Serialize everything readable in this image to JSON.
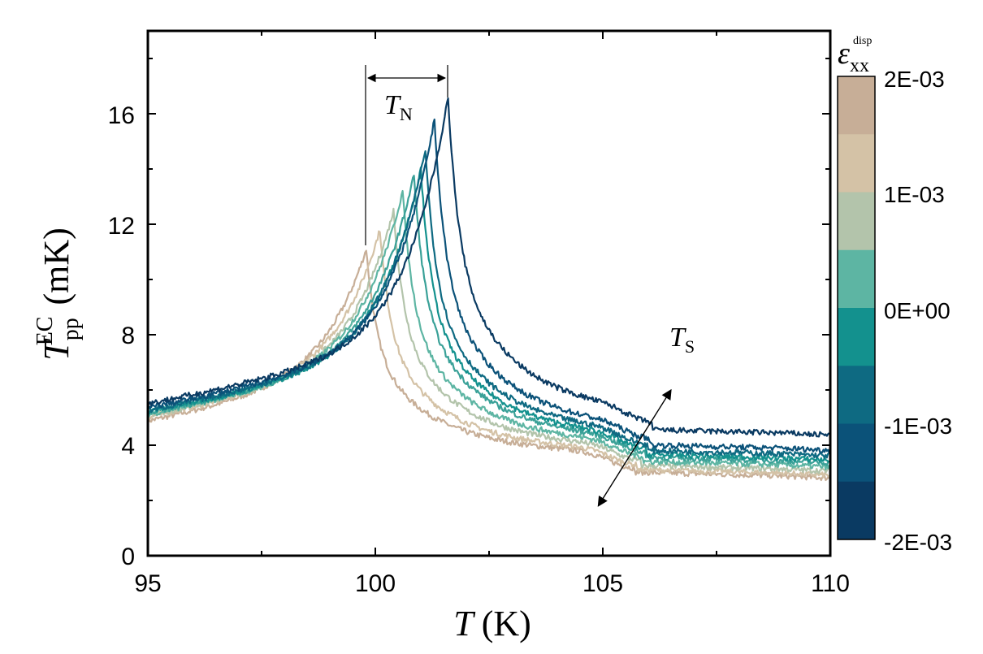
{
  "chart_data": {
    "type": "line",
    "xlabel": {
      "symbol": "T",
      "unit": "(K)"
    },
    "ylabel": {
      "symbol": "T",
      "sub": "pp",
      "sup": "EC",
      "unit": "(mK)"
    },
    "xlim": [
      95,
      110
    ],
    "ylim": [
      0,
      19
    ],
    "x_ticks": [
      95,
      100,
      105,
      110
    ],
    "x_tick_labels": [
      "95",
      "100",
      "105",
      "110"
    ],
    "y_ticks": [
      0,
      4,
      8,
      12,
      16
    ],
    "y_tick_labels": [
      "0",
      "4",
      "8",
      "12",
      "16"
    ],
    "colorbar": {
      "title": {
        "symbol": "ε",
        "sub": "xx",
        "sup": "disp"
      },
      "tick_labels": [
        "2E-03",
        "1E-03",
        "0E+00",
        "-1E-03",
        "-2E-03"
      ],
      "colors_top_to_bottom": [
        "#c7ae97",
        "#d4c2a6",
        "#b3c4ab",
        "#5db5a3",
        "#13918e",
        "#0e6a82",
        "#0b5279",
        "#0a3a62"
      ]
    },
    "annotations": {
      "tn": {
        "symbol": "T",
        "sub": "N",
        "x_from": 99.8,
        "x_to": 101.6
      },
      "ts": {
        "symbol": "T",
        "sub": "S",
        "arrow_from": [
          106.5,
          6.0
        ],
        "arrow_to": [
          104.9,
          1.8
        ]
      }
    },
    "series": [
      {
        "strain": 0.002,
        "color": "#c7ae97",
        "tn": 99.8,
        "peak": 11.1,
        "base": 4.85,
        "tail": 2.7
      },
      {
        "strain": 0.0015,
        "color": "#d4c2a6",
        "tn": 100.1,
        "peak": 11.8,
        "base": 5.0,
        "tail": 2.8
      },
      {
        "strain": 0.001,
        "color": "#b3c4ab",
        "tn": 100.4,
        "peak": 12.5,
        "base": 5.05,
        "tail": 2.95
      },
      {
        "strain": 0.0005,
        "color": "#5db5a3",
        "tn": 100.6,
        "peak": 13.2,
        "base": 5.1,
        "tail": 3.1
      },
      {
        "strain": 0.0002,
        "color": "#3aa198",
        "tn": 100.85,
        "peak": 13.8,
        "base": 5.15,
        "tail": 3.25
      },
      {
        "strain": 0.0,
        "color": "#13918e",
        "tn": 101.0,
        "peak": 14.0,
        "base": 5.2,
        "tail": 3.35
      },
      {
        "strain": -0.0005,
        "color": "#0e6a82",
        "tn": 101.1,
        "peak": 14.7,
        "base": 5.25,
        "tail": 3.5
      },
      {
        "strain": -0.001,
        "color": "#0b5279",
        "tn": 101.3,
        "peak": 15.8,
        "base": 5.35,
        "tail": 3.7
      },
      {
        "strain": -0.002,
        "color": "#0a3a62",
        "tn": 101.6,
        "peak": 16.6,
        "base": 5.5,
        "tail": 4.25
      }
    ]
  }
}
